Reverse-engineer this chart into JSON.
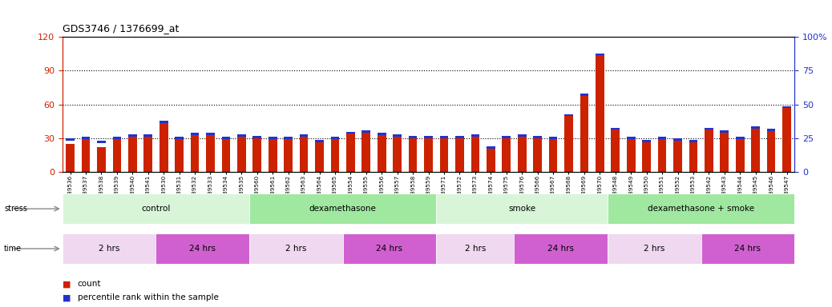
{
  "title": "GDS3746 / 1376699_at",
  "samples": [
    "GSM389536",
    "GSM389537",
    "GSM389538",
    "GSM389539",
    "GSM389540",
    "GSM389541",
    "GSM389530",
    "GSM389531",
    "GSM389532",
    "GSM389533",
    "GSM389534",
    "GSM389535",
    "GSM389560",
    "GSM389561",
    "GSM389562",
    "GSM389563",
    "GSM389564",
    "GSM389565",
    "GSM389554",
    "GSM389555",
    "GSM389556",
    "GSM389557",
    "GSM389558",
    "GSM389559",
    "GSM389571",
    "GSM389572",
    "GSM389573",
    "GSM389574",
    "GSM389575",
    "GSM389576",
    "GSM389566",
    "GSM389567",
    "GSM389568",
    "GSM389569",
    "GSM389570",
    "GSM389548",
    "GSM389549",
    "GSM389550",
    "GSM389551",
    "GSM389552",
    "GSM389553",
    "GSM389542",
    "GSM389543",
    "GSM389544",
    "GSM389545",
    "GSM389546",
    "GSM389547"
  ],
  "count_values": [
    25,
    30,
    22,
    30,
    32,
    31,
    44,
    30,
    34,
    34,
    30,
    32,
    31,
    30,
    30,
    32,
    28,
    30,
    34,
    36,
    33,
    32,
    31,
    31,
    31,
    31,
    32,
    22,
    31,
    33,
    31,
    30,
    50,
    68,
    105,
    38,
    30,
    28,
    30,
    29,
    28,
    38,
    36,
    30,
    40,
    37,
    58
  ],
  "percentile_values": [
    24,
    25,
    22,
    25,
    27,
    27,
    37,
    25,
    28,
    28,
    25,
    27,
    26,
    25,
    25,
    27,
    23,
    25,
    29,
    30,
    28,
    27,
    26,
    26,
    26,
    26,
    27,
    18,
    26,
    27,
    26,
    25,
    42,
    57,
    87,
    32,
    25,
    23,
    25,
    24,
    23,
    32,
    30,
    25,
    33,
    31,
    48
  ],
  "left_ylim": [
    0,
    120
  ],
  "right_ylim": [
    0,
    100
  ],
  "left_yticks": [
    0,
    30,
    60,
    90,
    120
  ],
  "right_yticks": [
    0,
    25,
    50,
    75,
    100
  ],
  "bar_color": "#cc2200",
  "percentile_color": "#2233cc",
  "stress_groups": [
    {
      "label": "control",
      "start": 0,
      "end": 12,
      "color": "#d8f5d8"
    },
    {
      "label": "dexamethasone",
      "start": 12,
      "end": 24,
      "color": "#a0e8a0"
    },
    {
      "label": "smoke",
      "start": 24,
      "end": 35,
      "color": "#d8f5d8"
    },
    {
      "label": "dexamethasone + smoke",
      "start": 35,
      "end": 47,
      "color": "#a0e8a0"
    }
  ],
  "time_groups": [
    {
      "label": "2 hrs",
      "start": 0,
      "end": 6,
      "color": "#f0d8f0"
    },
    {
      "label": "24 hrs",
      "start": 6,
      "end": 12,
      "color": "#d060d0"
    },
    {
      "label": "2 hrs",
      "start": 12,
      "end": 18,
      "color": "#f0d8f0"
    },
    {
      "label": "24 hrs",
      "start": 18,
      "end": 24,
      "color": "#d060d0"
    },
    {
      "label": "2 hrs",
      "start": 24,
      "end": 29,
      "color": "#f0d8f0"
    },
    {
      "label": "24 hrs",
      "start": 29,
      "end": 35,
      "color": "#d060d0"
    },
    {
      "label": "2 hrs",
      "start": 35,
      "end": 41,
      "color": "#f0d8f0"
    },
    {
      "label": "24 hrs",
      "start": 41,
      "end": 47,
      "color": "#d060d0"
    }
  ],
  "left_axis_color": "#cc2200",
  "right_axis_color": "#2233cc",
  "grid_color": "#000000"
}
